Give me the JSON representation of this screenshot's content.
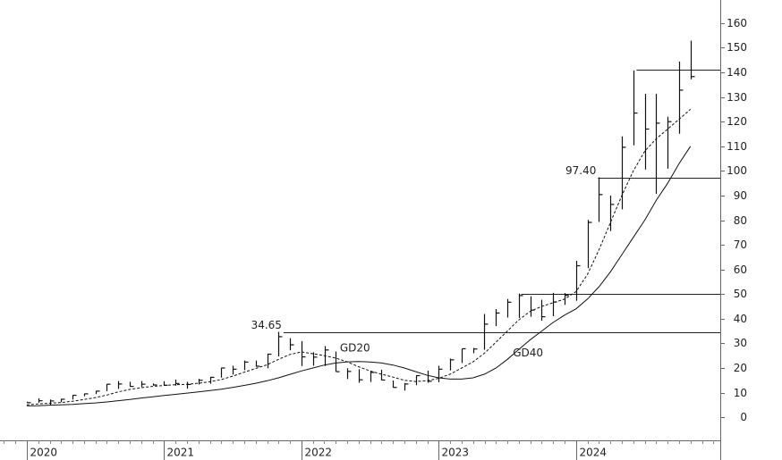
{
  "chart_data": {
    "type": "ohlc",
    "x": [
      2020.0,
      2020.083,
      2020.167,
      2020.25,
      2020.333,
      2020.417,
      2020.5,
      2020.583,
      2020.667,
      2020.75,
      2020.833,
      2020.917,
      2021.0,
      2021.083,
      2021.167,
      2021.25,
      2021.333,
      2021.417,
      2021.5,
      2021.583,
      2021.667,
      2021.75,
      2021.833,
      2021.917,
      2022.0,
      2022.083,
      2022.167,
      2022.25,
      2022.333,
      2022.417,
      2022.5,
      2022.583,
      2022.667,
      2022.75,
      2022.833,
      2022.917,
      2023.0,
      2023.083,
      2023.167,
      2023.25,
      2023.333,
      2023.417,
      2023.5,
      2023.583,
      2023.667,
      2023.75,
      2023.833,
      2023.917,
      2024.0,
      2024.083,
      2024.167,
      2024.25,
      2024.333,
      2024.417,
      2024.5,
      2024.583,
      2024.667,
      2024.75,
      2024.833
    ],
    "high": [
      6.3,
      7.7,
      7.2,
      7.5,
      9.0,
      9.6,
      10.7,
      13.5,
      14.7,
      14.4,
      14.7,
      13.7,
      14.6,
      15.3,
      14.4,
      15.6,
      16.4,
      20.1,
      20.9,
      23.0,
      23.0,
      25.8,
      34.65,
      32.1,
      30.9,
      26.4,
      28.9,
      26.7,
      19.9,
      19.5,
      18.7,
      19.3,
      14.9,
      13.9,
      17.0,
      18.9,
      20.9,
      23.8,
      27.8,
      28.1,
      41.9,
      43.9,
      48.0,
      50.2,
      49.1,
      47.7,
      50.5,
      50.4,
      63.5,
      80.1,
      97.4,
      90.0,
      114.0,
      140.8,
      131.3,
      131.3,
      122.0,
      144.4,
      152.9
    ],
    "low": [
      5.8,
      5.9,
      4.9,
      6.1,
      7.2,
      8.5,
      9.4,
      10.6,
      11.5,
      12.4,
      12.3,
      12.8,
      12.8,
      12.8,
      11.6,
      13.3,
      13.6,
      16.1,
      17.3,
      19.1,
      20.5,
      19.9,
      24.7,
      27.2,
      20.8,
      20.9,
      20.8,
      18.5,
      15.5,
      14.0,
      14.3,
      15.0,
      12.0,
      10.8,
      13.0,
      14.0,
      14.2,
      19.0,
      22.0,
      26.0,
      27.4,
      37.0,
      40.5,
      40.3,
      40.8,
      39.2,
      41.0,
      45.6,
      47.3,
      60.5,
      79.3,
      75.6,
      84.4,
      110.4,
      100.6,
      90.7,
      100.9,
      115.1,
      137.2
    ],
    "close": [
      5.9,
      6.7,
      6.6,
      7.3,
      8.9,
      9.5,
      10.6,
      13.4,
      13.5,
      12.5,
      13.4,
      13.1,
      13.0,
      13.7,
      13.3,
      15.0,
      16.2,
      20.0,
      19.5,
      22.4,
      20.7,
      25.6,
      32.7,
      29.4,
      24.5,
      24.4,
      27.3,
      18.5,
      18.6,
      15.2,
      18.2,
      15.1,
      12.1,
      13.5,
      16.9,
      14.6,
      19.5,
      23.3,
      27.8,
      27.7,
      37.8,
      42.3,
      46.7,
      49.4,
      43.5,
      40.8,
      46.8,
      49.5,
      61.5,
      79.1,
      90.4,
      86.4,
      109.6,
      123.5,
      117.0,
      119.4,
      120.0,
      132.8,
      138.3
    ],
    "averages": [
      {
        "name": "GD20",
        "dashed": true,
        "values": [
          5.0,
          5.4,
          5.7,
          6.0,
          6.5,
          7.2,
          8.0,
          9.0,
          10.3,
          11.3,
          12.0,
          12.5,
          12.9,
          13.2,
          13.4,
          13.8,
          14.4,
          15.3,
          16.7,
          18.3,
          19.8,
          21.3,
          23.5,
          25.5,
          26.5,
          25.8,
          25.0,
          24.0,
          22.5,
          20.5,
          18.8,
          17.5,
          16.3,
          15.0,
          14.5,
          14.8,
          15.8,
          17.5,
          20.0,
          22.5,
          26.0,
          30.5,
          35.0,
          39.5,
          43.0,
          45.0,
          46.5,
          48.0,
          51,
          58,
          68,
          79,
          90,
          100,
          108,
          113,
          117,
          121,
          125
        ],
        "label_x": 2022.28,
        "label_y": 28
      },
      {
        "name": "GD40",
        "dashed": false,
        "values": [
          4.6,
          4.7,
          4.9,
          5.0,
          5.2,
          5.5,
          5.8,
          6.2,
          6.7,
          7.2,
          7.8,
          8.3,
          8.8,
          9.3,
          9.8,
          10.3,
          10.8,
          11.4,
          12.1,
          12.9,
          13.8,
          14.8,
          16.0,
          17.4,
          18.8,
          20.0,
          21.2,
          22.0,
          22.5,
          22.6,
          22.4,
          22.0,
          21.2,
          20.0,
          18.5,
          17.0,
          16.0,
          15.5,
          15.5,
          16.0,
          17.5,
          20.0,
          23.5,
          27.5,
          31.5,
          35.0,
          38.5,
          41.5,
          44,
          48,
          53,
          59,
          66,
          73,
          80,
          88,
          95,
          103,
          110
        ],
        "label_x": 2023.54,
        "label_y": 26
      }
    ],
    "levels": [
      {
        "value": 34.65,
        "label": "34.65",
        "from": 2021.87
      },
      {
        "value": 97.4,
        "label": "97.40",
        "from": 2024.16
      },
      {
        "value": 50,
        "from": 2023.6
      },
      {
        "value": 141,
        "from": 2024.44
      }
    ],
    "color": "#111111",
    "xlim": [
      2019.805,
      2025.05
    ],
    "xticks": [
      2020,
      2021,
      2022,
      2023,
      2024
    ],
    "ylim": [
      -8.3,
      169.4
    ],
    "yticks": [
      0,
      10,
      20,
      30,
      40,
      50,
      60,
      70,
      80,
      90,
      100,
      110,
      120,
      130,
      140,
      150,
      160
    ]
  }
}
